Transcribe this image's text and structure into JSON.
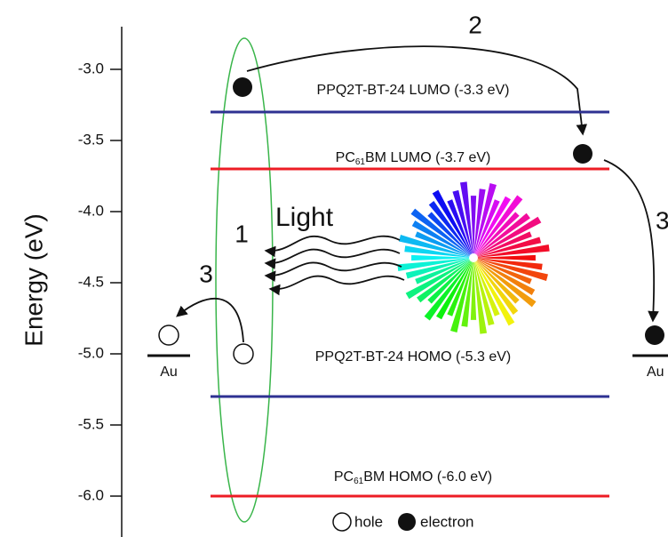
{
  "axis": {
    "label": "Energy (eV)",
    "ticks": [
      {
        "value": -3,
        "label": "-3.0"
      },
      -3.5,
      {
        "value": -4,
        "label": "-4.0"
      },
      -4.5,
      {
        "value": -5,
        "label": "-5.0"
      },
      -5.5,
      {
        "value": -6,
        "label": "-6.0"
      }
    ]
  },
  "levels": [
    {
      "value": -3.3,
      "color": "#2e3192",
      "label": {
        "text": "PPQ2T-BT-24 LUMO (-3.3 eV)"
      }
    },
    {
      "value": -3.7,
      "color": "#ed1c24",
      "label": {
        "prefix": "PC",
        "subscript": "61",
        "suffix": "BM LUMO (-3.7 eV)"
      }
    },
    {
      "value": -5.3,
      "color": "#2e3192",
      "label": {
        "text": "PPQ2T-BT-24 HOMO (-5.3 eV)"
      }
    },
    {
      "value": -6.0,
      "color": "#ed1c24",
      "label": {
        "prefix": "PC",
        "subscript": "61",
        "suffix": "BM HOMO (-6.0 eV)"
      }
    }
  ],
  "steps": [
    "1",
    "2",
    "3",
    "3"
  ],
  "light": "Light",
  "electrodes": [
    "Au",
    "Au"
  ],
  "legend": {
    "hole": "hole",
    "electron": "electron"
  }
}
